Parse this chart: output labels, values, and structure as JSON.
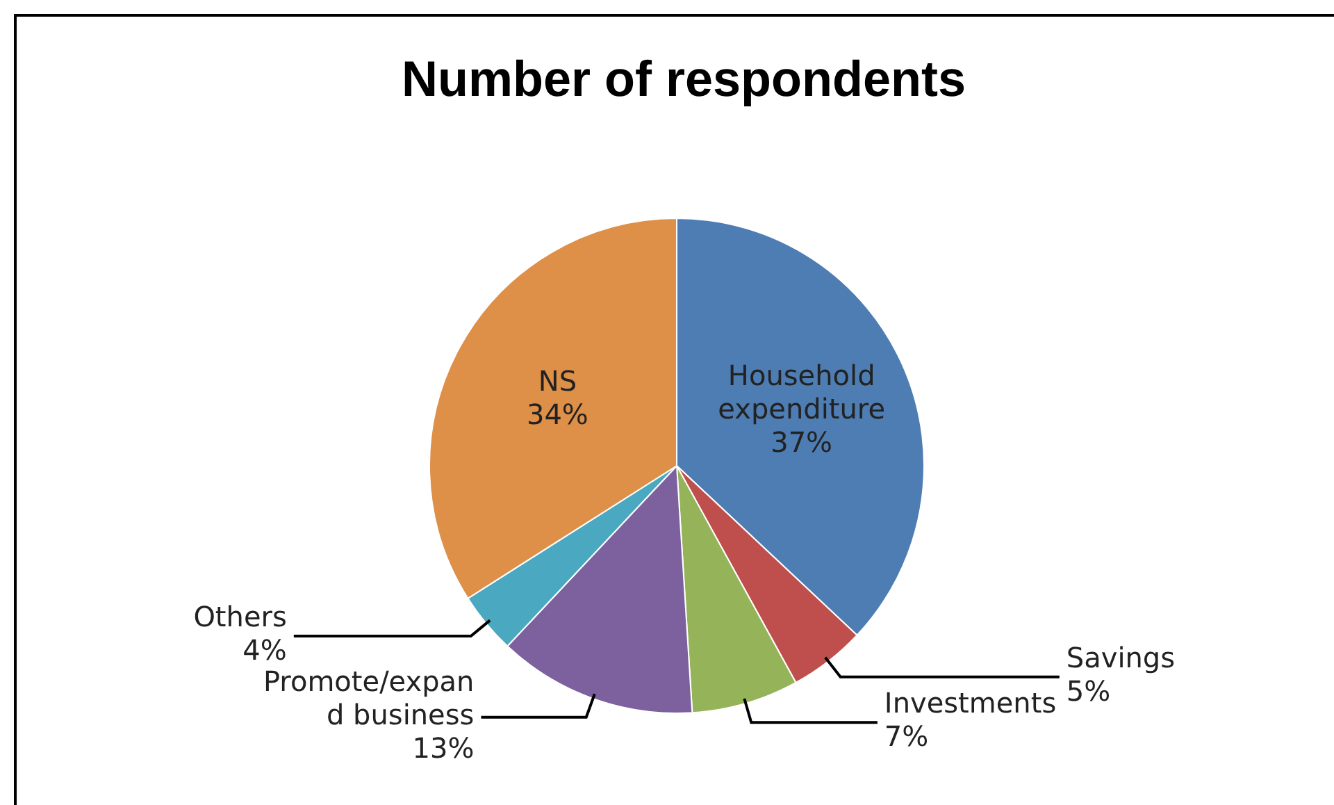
{
  "chart_data": {
    "type": "pie",
    "title": "Number of respondents",
    "categories": [
      "Household expenditure",
      "Savings",
      "Investments",
      "Promote/expand business",
      "Others",
      "NS"
    ],
    "values": [
      37,
      5,
      7,
      13,
      4,
      34
    ],
    "colors": [
      "#4e7db3",
      "#bf4f4c",
      "#95b45a",
      "#7d619e",
      "#4aa8c0",
      "#de8f48"
    ],
    "value_labels": [
      "37%",
      "5%",
      "7%",
      "13%",
      "4%",
      "34%"
    ],
    "legend": false
  }
}
